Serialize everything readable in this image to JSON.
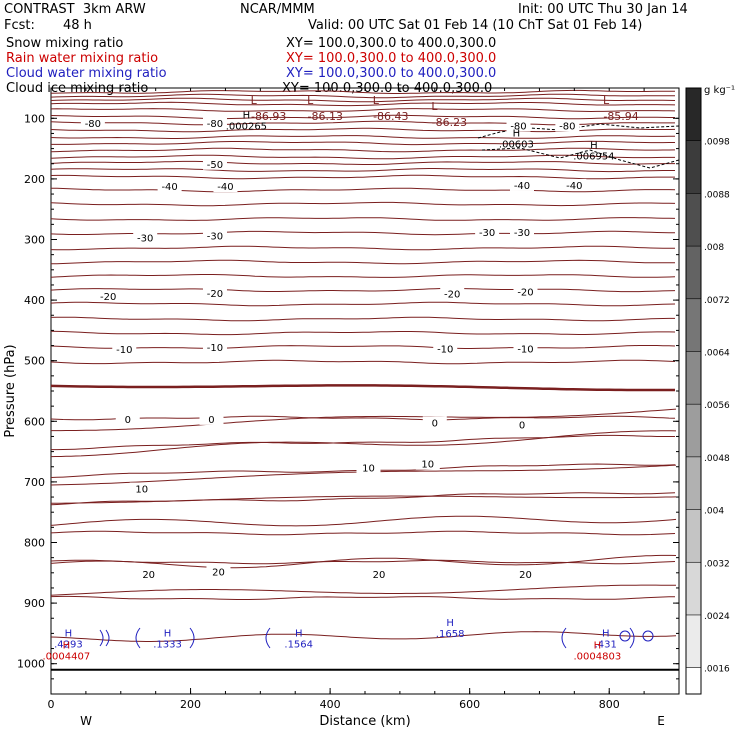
{
  "header": {
    "project": "CONTRAST  3km ARW",
    "org": "NCAR/MMM",
    "init": "Init: 00 UTC Thu 30 Jan 14",
    "fcst_label": "Fcst:",
    "fcst_value": "48 h",
    "valid": "Valid: 00 UTC Sat 01 Feb 14 (10 ChT Sat 01 Feb 14)",
    "fields": [
      {
        "name": "Snow mixing ratio",
        "xy": "XY= 100.0,300.0 to 400.0,300.0",
        "color": "#000000"
      },
      {
        "name": "Rain water mixing ratio",
        "xy": "XY= 100.0,300.0 to 400.0,300.0",
        "color": "#cc0000"
      },
      {
        "name": "Cloud water mixing ratio",
        "xy": "XY= 100.0,300.0 to 400.0,300.0",
        "color": "#1f1fbf"
      },
      {
        "name": "Cloud ice mixing ratio",
        "xy": "XY= 100.0,300.0 to 400.0,300.0",
        "color": "#000000"
      }
    ]
  },
  "chart_data": {
    "type": "contour",
    "xlabel": "Distance (km)",
    "ylabel": "Pressure (hPa)",
    "xlim": [
      0,
      900
    ],
    "ylim": [
      1050,
      50
    ],
    "x_ticks": [
      0,
      200,
      400,
      600,
      800
    ],
    "y_ticks": [
      100,
      200,
      300,
      400,
      500,
      600,
      700,
      800,
      900,
      1000
    ],
    "x_end_labels": {
      "left": "W",
      "right": "E"
    },
    "temperature_contours": [
      {
        "level": "-80",
        "labels_at": [
          {
            "x": 60,
            "p": 108
          },
          {
            "x": 235,
            "p": 108
          },
          {
            "x": 670,
            "p": 112
          },
          {
            "x": 740,
            "p": 112
          }
        ]
      },
      {
        "level": "-50",
        "labels_at": [
          {
            "x": 235,
            "p": 175
          }
        ]
      },
      {
        "level": "-40",
        "labels_at": [
          {
            "x": 170,
            "p": 212
          },
          {
            "x": 250,
            "p": 212
          },
          {
            "x": 675,
            "p": 210
          },
          {
            "x": 750,
            "p": 210
          }
        ]
      },
      {
        "level": "-30",
        "labels_at": [
          {
            "x": 135,
            "p": 297
          },
          {
            "x": 235,
            "p": 293
          },
          {
            "x": 625,
            "p": 288
          },
          {
            "x": 675,
            "p": 288
          }
        ]
      },
      {
        "level": "-20",
        "labels_at": [
          {
            "x": 82,
            "p": 393
          },
          {
            "x": 235,
            "p": 388
          },
          {
            "x": 575,
            "p": 389
          },
          {
            "x": 680,
            "p": 386
          }
        ]
      },
      {
        "level": "-10",
        "labels_at": [
          {
            "x": 105,
            "p": 481
          },
          {
            "x": 235,
            "p": 477
          },
          {
            "x": 565,
            "p": 480
          },
          {
            "x": 680,
            "p": 480
          }
        ]
      },
      {
        "level": "0",
        "labels_at": [
          {
            "x": 110,
            "p": 596
          },
          {
            "x": 230,
            "p": 596
          },
          {
            "x": 550,
            "p": 602
          },
          {
            "x": 675,
            "p": 605
          }
        ]
      },
      {
        "level": "10",
        "labels_at": [
          {
            "x": 130,
            "p": 711
          },
          {
            "x": 455,
            "p": 676
          },
          {
            "x": 540,
            "p": 670
          }
        ]
      },
      {
        "level": "20",
        "labels_at": [
          {
            "x": 140,
            "p": 852
          },
          {
            "x": 240,
            "p": 848
          },
          {
            "x": 470,
            "p": 852
          },
          {
            "x": 680,
            "p": 852
          }
        ]
      }
    ],
    "minima": [
      {
        "label": "L",
        "value": "-86.93",
        "x": 312,
        "p": 70
      },
      {
        "label": "L",
        "value": "-86.13",
        "x": 393,
        "p": 70
      },
      {
        "label": "L",
        "value": "-86.43",
        "x": 487,
        "p": 70
      },
      {
        "label": "L",
        "value": "-86.23",
        "x": 571,
        "p": 80
      },
      {
        "label": "L",
        "value": "-85.94",
        "x": 817,
        "p": 70
      }
    ],
    "maxima": [
      {
        "label": "H",
        "value": ".000265",
        "x": 280,
        "p": 100,
        "field": "Cloud ice mixing ratio"
      },
      {
        "label": "H",
        "value": ".00603",
        "x": 667,
        "p": 130,
        "field": "Cloud ice mixing ratio"
      },
      {
        "label": "H",
        "value": ".006954",
        "x": 778,
        "p": 150,
        "field": "Cloud ice mixing ratio"
      },
      {
        "label": "H",
        "value": ".4293",
        "x": 25,
        "p": 955,
        "field": "Cloud water mixing ratio"
      },
      {
        "label": "H",
        "value": ".0004407",
        "x": 22,
        "p": 975,
        "field": "Rain water mixing ratio"
      },
      {
        "label": "H",
        "value": ".1333",
        "x": 167,
        "p": 955,
        "field": "Cloud water mixing ratio"
      },
      {
        "label": "H",
        "value": ".1564",
        "x": 355,
        "p": 955,
        "field": "Cloud water mixing ratio"
      },
      {
        "label": "H",
        "value": ".1658",
        "x": 572,
        "p": 938,
        "field": "Cloud water mixing ratio"
      },
      {
        "label": "H",
        "value": ".431",
        "x": 795,
        "p": 955,
        "field": "Cloud water mixing ratio"
      },
      {
        "label": "H",
        "value": ".0004803",
        "x": 783,
        "p": 975,
        "field": "Rain water mixing ratio"
      }
    ],
    "colorbar": {
      "unit": "g kg⁻¹",
      "ticks": [
        ".0098",
        ".0088",
        ".008",
        ".0072",
        ".0064",
        ".0056",
        ".0048",
        ".004",
        ".0032",
        ".0024",
        ".0016"
      ]
    }
  }
}
